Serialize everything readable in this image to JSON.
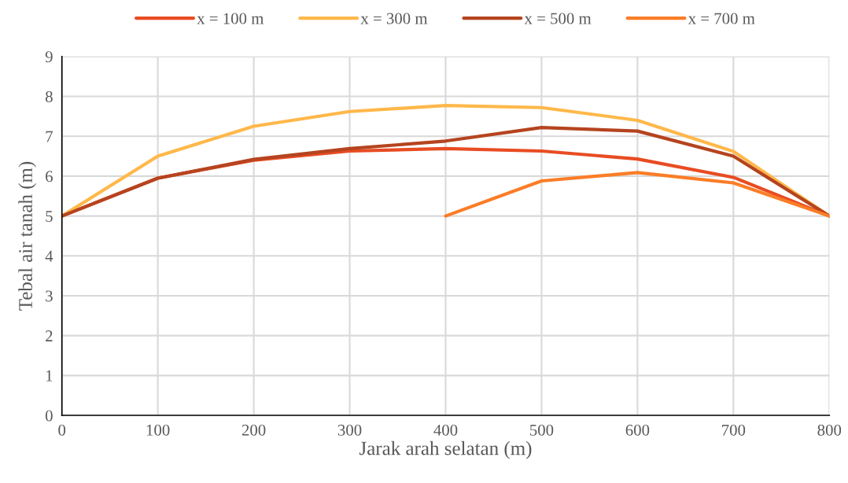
{
  "chart_data": {
    "type": "line",
    "xlabel": "Jarak arah selatan (m)",
    "ylabel": "Tebal air tanah (m)",
    "x": [
      0,
      100,
      200,
      300,
      400,
      500,
      600,
      700,
      800
    ],
    "series": [
      {
        "name": "x = 100 m",
        "color": "#e84c22",
        "values": [
          5,
          5.95,
          6.4,
          6.63,
          6.69,
          6.63,
          6.43,
          5.97,
          5
        ]
      },
      {
        "name": "x = 300 m",
        "color": "#ffb84a",
        "values": [
          5,
          6.5,
          7.25,
          7.62,
          7.77,
          7.72,
          7.4,
          6.62,
          5
        ]
      },
      {
        "name": "x = 500 m",
        "color": "#b5441f",
        "values": [
          5,
          5.95,
          6.42,
          6.69,
          6.88,
          7.22,
          7.13,
          6.5,
          5
        ]
      },
      {
        "name": "x = 700 m",
        "color": "#fb7d27",
        "values": [
          null,
          null,
          null,
          null,
          5,
          5.88,
          6.09,
          5.83,
          5
        ]
      }
    ],
    "xlim": [
      0,
      800
    ],
    "xticks": [
      0,
      100,
      200,
      300,
      400,
      500,
      600,
      700,
      800
    ],
    "ylim": [
      0,
      9
    ],
    "yticks": [
      0,
      1,
      2,
      3,
      4,
      5,
      6,
      7,
      8,
      9
    ],
    "grid": true,
    "legend": "top",
    "marker": "none",
    "line_style": "solid"
  }
}
